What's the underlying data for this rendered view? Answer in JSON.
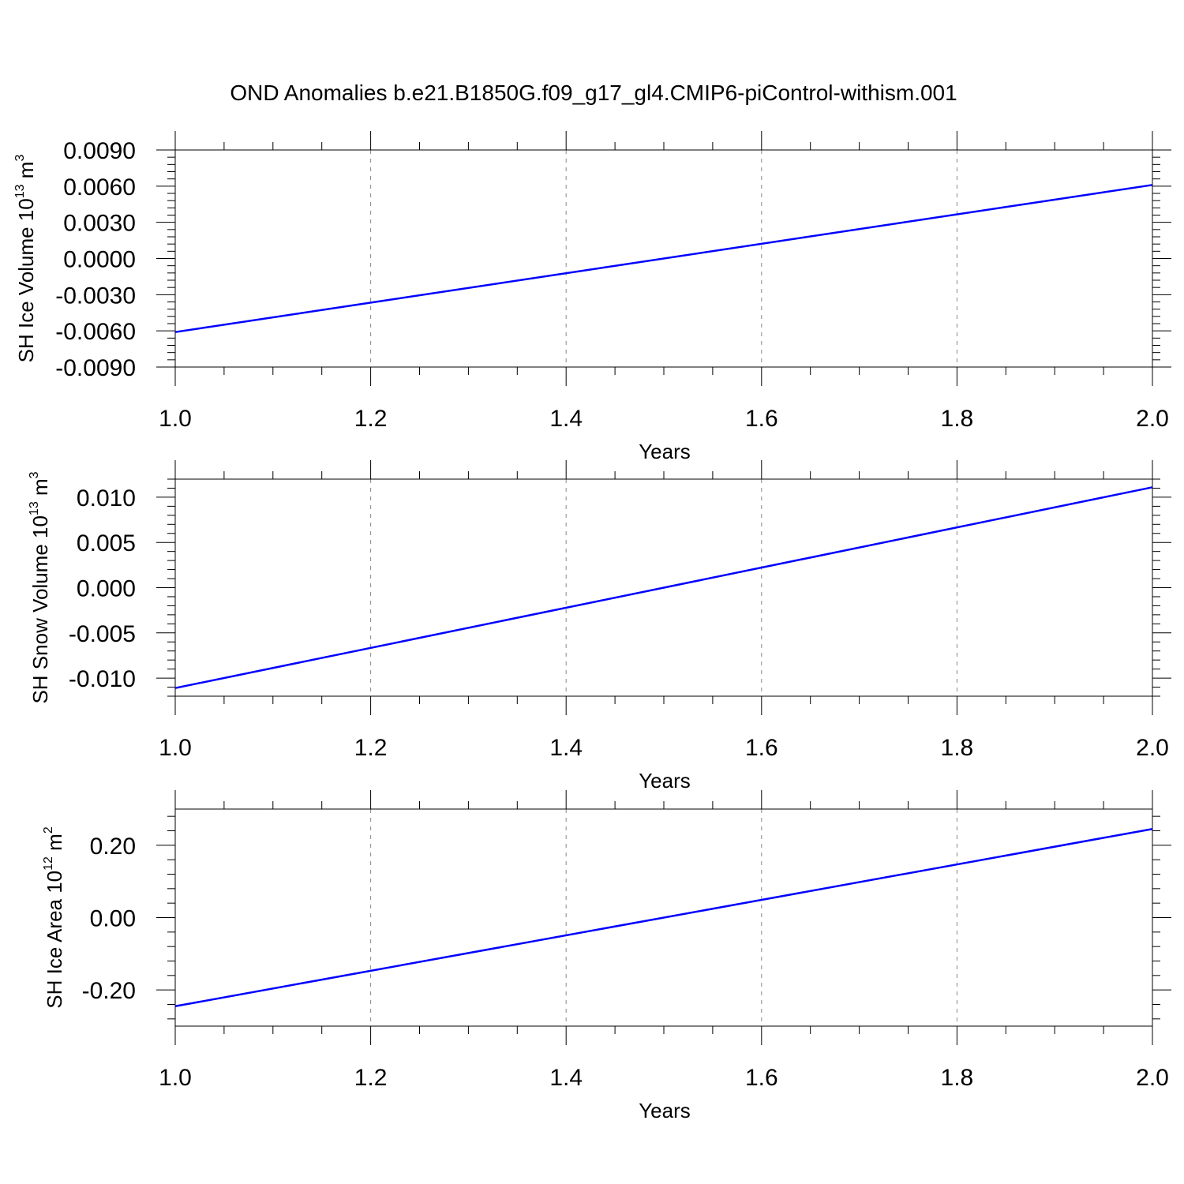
{
  "figure": {
    "title": "OND Anomalies b.e21.B1850G.f09_g17_gl4.CMIP6-piControl-withism.001"
  },
  "chart_data": [
    {
      "type": "line",
      "xlabel": "Years",
      "ylabel": "SH Ice Volume 10",
      "ylabel_exponent": "13",
      "ylabel_unit": " m",
      "ylabel_unit_exponent": "3",
      "xlim": [
        1.0,
        2.0
      ],
      "ylim": [
        -0.009,
        0.009
      ],
      "xticks": [
        1.0,
        1.2,
        1.4,
        1.6,
        1.8,
        2.0
      ],
      "xtick_labels": [
        "1.0",
        "1.2",
        "1.4",
        "1.6",
        "1.8",
        "2.0"
      ],
      "yticks": [
        -0.009,
        -0.006,
        -0.003,
        0.0,
        0.003,
        0.006,
        0.009
      ],
      "ytick_labels": [
        "-0.0090",
        "-0.0060",
        "-0.0030",
        "0.0000",
        "0.0030",
        "0.0060",
        "0.0090"
      ],
      "x_gridlines": [
        1.2,
        1.4,
        1.6,
        1.8
      ],
      "grid": "vertical dashed",
      "series": [
        {
          "x": [
            1.0,
            2.0
          ],
          "y": [
            -0.0061,
            0.0061
          ],
          "color": "#0000ff"
        }
      ]
    },
    {
      "type": "line",
      "xlabel": "Years",
      "ylabel": "SH Snow Volume 10",
      "ylabel_exponent": "13",
      "ylabel_unit": " m",
      "ylabel_unit_exponent": "3",
      "xlim": [
        1.0,
        2.0
      ],
      "ylim": [
        -0.012,
        0.012
      ],
      "xticks": [
        1.0,
        1.2,
        1.4,
        1.6,
        1.8,
        2.0
      ],
      "xtick_labels": [
        "1.0",
        "1.2",
        "1.4",
        "1.6",
        "1.8",
        "2.0"
      ],
      "yticks": [
        -0.01,
        -0.005,
        0.0,
        0.005,
        0.01
      ],
      "ytick_labels": [
        "-0.010",
        "-0.005",
        "0.000",
        "0.005",
        "0.010"
      ],
      "x_gridlines": [
        1.2,
        1.4,
        1.6,
        1.8
      ],
      "grid": "vertical dashed",
      "series": [
        {
          "x": [
            1.0,
            2.0
          ],
          "y": [
            -0.0111,
            0.0111
          ],
          "color": "#0000ff"
        }
      ]
    },
    {
      "type": "line",
      "xlabel": "Years",
      "ylabel": "SH Ice Area 10",
      "ylabel_exponent": "12",
      "ylabel_unit": " m",
      "ylabel_unit_exponent": "2",
      "xlim": [
        1.0,
        2.0
      ],
      "ylim": [
        -0.3,
        0.3
      ],
      "xticks": [
        1.0,
        1.2,
        1.4,
        1.6,
        1.8,
        2.0
      ],
      "xtick_labels": [
        "1.0",
        "1.2",
        "1.4",
        "1.6",
        "1.8",
        "2.0"
      ],
      "yticks": [
        -0.2,
        0.0,
        0.2
      ],
      "ytick_labels": [
        "-0.20",
        "0.00",
        "0.20"
      ],
      "x_gridlines": [
        1.2,
        1.4,
        1.6,
        1.8
      ],
      "grid": "vertical dashed",
      "series": [
        {
          "x": [
            1.0,
            2.0
          ],
          "y": [
            -0.245,
            0.245
          ],
          "color": "#0000ff"
        }
      ]
    }
  ]
}
